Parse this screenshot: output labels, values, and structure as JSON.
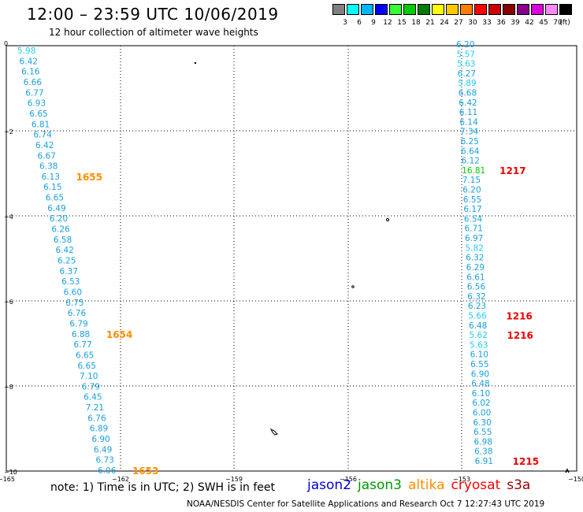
{
  "header": {
    "title": "12:00 – 23:59 UTC 10/06/2019",
    "subtitle": "12 hour collection of altimeter wave heights"
  },
  "legend": {
    "unit": "(ft)",
    "swatches": [
      {
        "color": "#808080",
        "label": "3"
      },
      {
        "color": "#00ffff",
        "label": "6"
      },
      {
        "color": "#00b4ff",
        "label": "9"
      },
      {
        "color": "#0000ff",
        "label": "12"
      },
      {
        "color": "#33ff33",
        "label": "15"
      },
      {
        "color": "#00cc00",
        "label": "18"
      },
      {
        "color": "#007a00",
        "label": "21"
      },
      {
        "color": "#ffff00",
        "label": "24"
      },
      {
        "color": "#ffc800",
        "label": "27"
      },
      {
        "color": "#ff7f00",
        "label": "30"
      },
      {
        "color": "#ff0000",
        "label": "33"
      },
      {
        "color": "#cc0000",
        "label": "36"
      },
      {
        "color": "#880000",
        "label": "39"
      },
      {
        "color": "#880088",
        "label": "42"
      },
      {
        "color": "#dd00dd",
        "label": "45"
      },
      {
        "color": "#ff88ff",
        "label": "70"
      },
      {
        "color": "#000000",
        "label": ""
      }
    ]
  },
  "axes": {
    "lat_labels": [
      "0",
      "−2",
      "−4",
      "−6",
      "−8",
      "−10"
    ],
    "lon_labels": [
      "−165",
      "−162",
      "−159",
      "−156",
      "−153",
      "−150"
    ]
  },
  "track_west": {
    "values": [
      "5.98",
      "6.42",
      "6.16",
      "6.66",
      "6.77",
      "6.93",
      "6.65",
      "6.81",
      "6.74",
      "6.42",
      "6.67",
      "6.38",
      "6.13",
      "6.15",
      "6.65",
      "6.49",
      "6.20",
      "6.26",
      "6.58",
      "6.42",
      "6.25",
      "6.37",
      "6.53",
      "6.60",
      "6.75",
      "6.76",
      "6.79",
      "6.88",
      "6.77",
      "6.65",
      "6.65",
      "7.10",
      "6.79",
      "6.45",
      "7.21",
      "6.76",
      "6.89",
      "6.90",
      "6.49",
      "6.73",
      "6.06"
    ],
    "times": [
      {
        "label": "1655",
        "index": 12
      },
      {
        "label": "1654",
        "index": 27
      },
      {
        "label": "1653",
        "index": 40
      }
    ]
  },
  "track_east": {
    "values": [
      "6.20",
      "5.57",
      "5.63",
      "6.27",
      "5.89",
      "6.68",
      "6.42",
      "6.11",
      "6.14",
      "7.34",
      "6.25",
      "6.64",
      "6.12",
      "16.81",
      "7.15",
      "6.20",
      "6.55",
      "6.17",
      "6.54",
      "6.71",
      "6.97",
      "5.82",
      "6.32",
      "6.29",
      "6.61",
      "6.56",
      "6.32",
      "6.23",
      "5.66",
      "6.48",
      "5.62",
      "5.63",
      "6.10",
      "6.55",
      "6.90",
      "6.48",
      "6.10",
      "6.02",
      "6.00",
      "6.30",
      "6.55",
      "6.98",
      "6.38",
      "6.91"
    ],
    "times": [
      {
        "label": "1217",
        "index": 13
      },
      {
        "label": "1216",
        "index": 28
      },
      {
        "label": "1216",
        "index": 30
      },
      {
        "label": "1215",
        "index": 43
      }
    ]
  },
  "note": "note: 1) Time is in UTC; 2) SWH is in feet",
  "satellites": [
    {
      "name": "jason2",
      "color": "#0000dd"
    },
    {
      "name": "jason3",
      "color": "#009900"
    },
    {
      "name": "altika",
      "color": "#ff8c00"
    },
    {
      "name": "cryosat",
      "color": "#ff0000"
    },
    {
      "name": "s3a",
      "color": "#990000"
    }
  ],
  "footer": "NOAA/NESDIS Center for Satellite Applications and Research   Oct  7 12:27:43 UTC 2019"
}
